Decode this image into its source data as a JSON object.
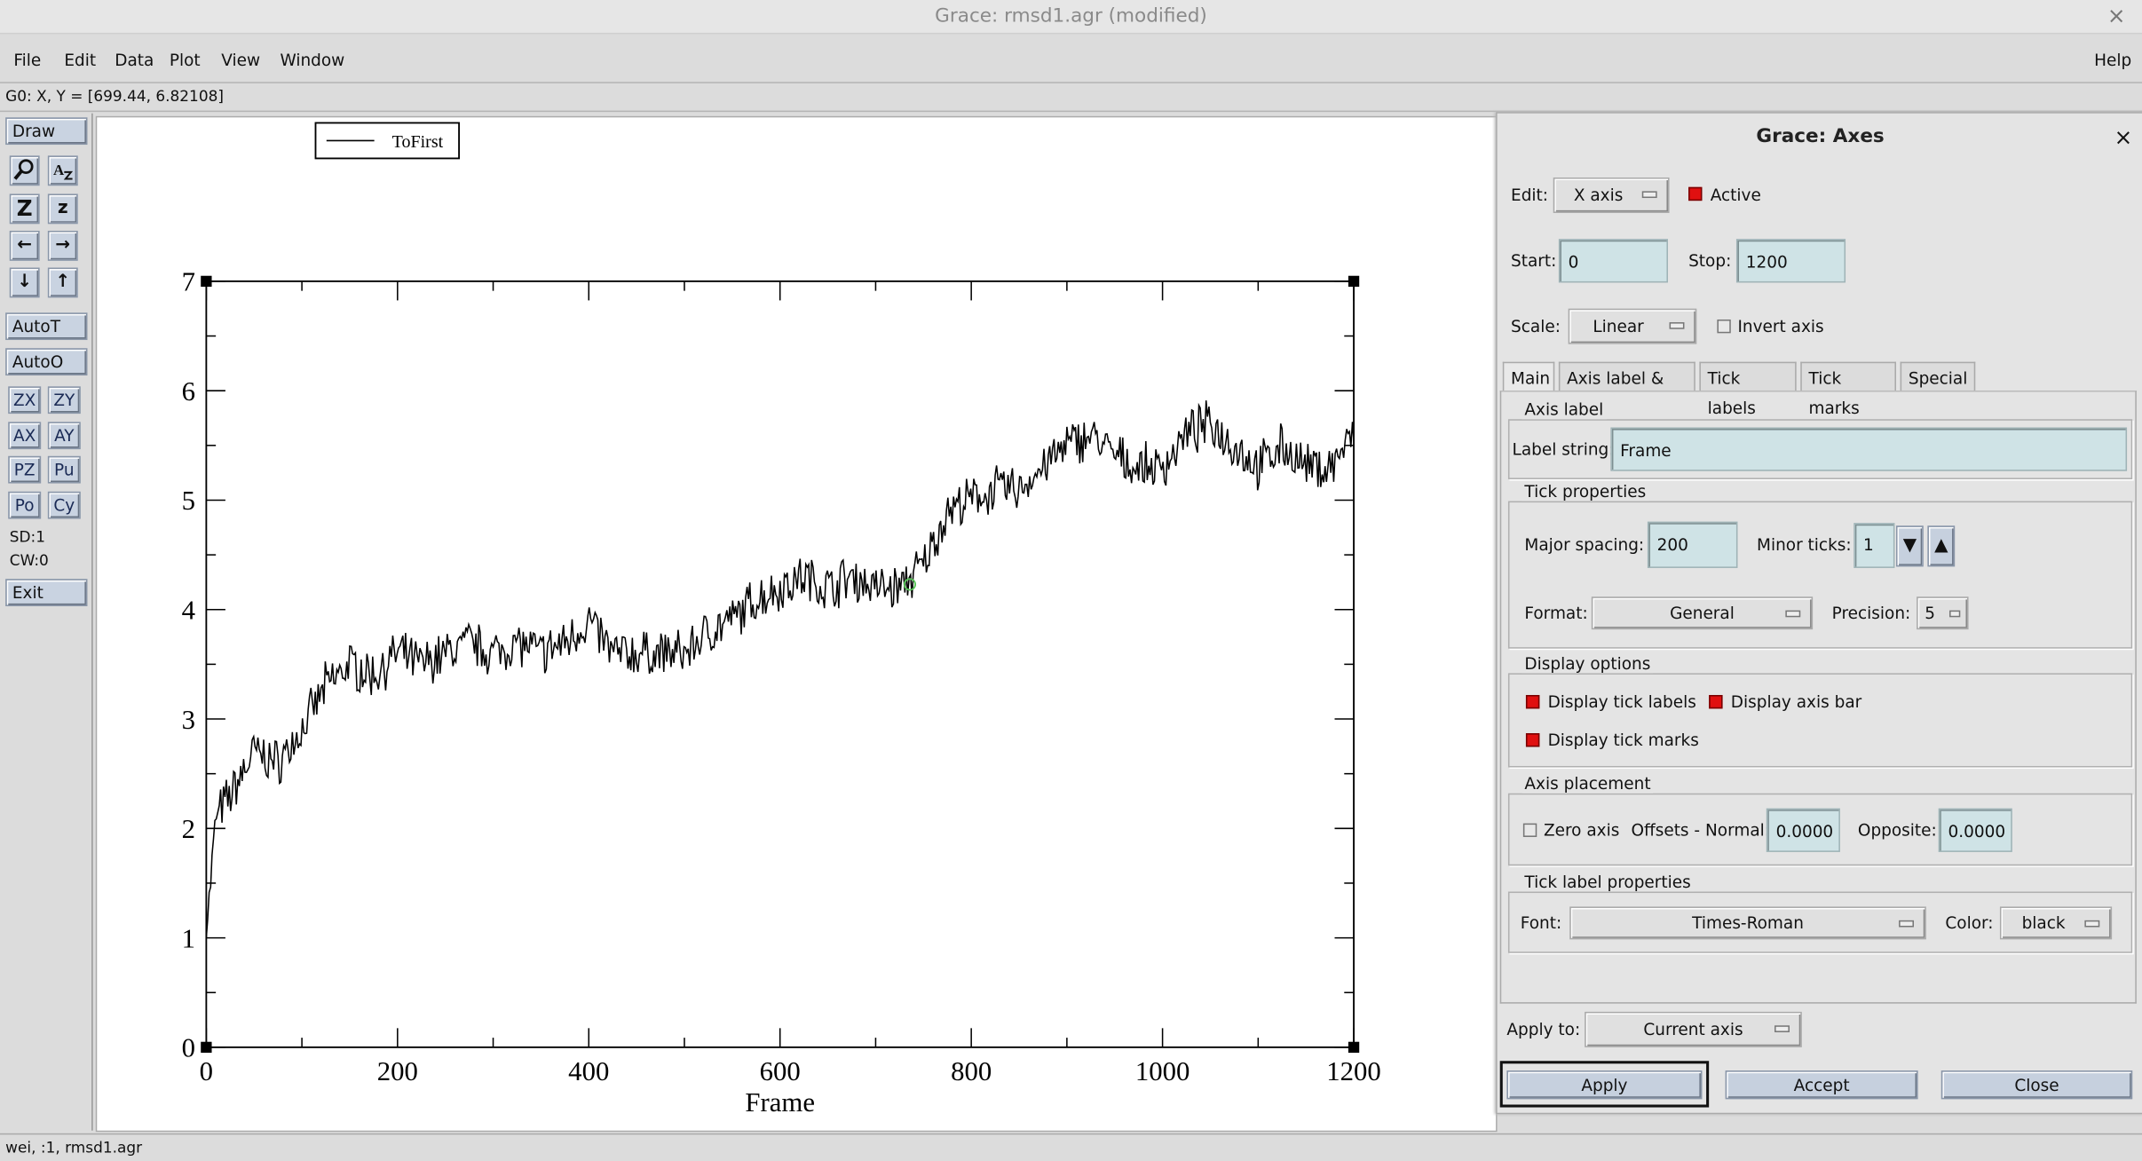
{
  "window": {
    "title": "Grace: rmsd1.agr (modified)",
    "close_glyph": "×"
  },
  "menubar": {
    "items": [
      "File",
      "Edit",
      "Data",
      "Plot",
      "View",
      "Window"
    ],
    "help": "Help"
  },
  "coord_readout": "G0: X, Y = [699.44, 6.82108]",
  "toolbar": {
    "draw": "Draw",
    "autot": "AutoT",
    "autoo": "AutoO",
    "zoom_buttons": [
      "ZX",
      "ZY",
      "AX",
      "AY",
      "PZ",
      "Pu",
      "Po",
      "Cy"
    ],
    "sd": "SD:1",
    "cw": "CW:0",
    "exit": "Exit"
  },
  "statusbar": "wei, :1, rmsd1.agr",
  "chart_data": {
    "type": "line",
    "xlabel": "Frame",
    "ylabel": "",
    "xlim": [
      0,
      1200
    ],
    "ylim": [
      0,
      7
    ],
    "x_ticks": [
      0,
      200,
      400,
      600,
      800,
      1000,
      1200
    ],
    "y_ticks": [
      0,
      1,
      2,
      3,
      4,
      5,
      6,
      7
    ],
    "legend": {
      "entries": [
        "ToFirst"
      ],
      "position": "top-left"
    },
    "grid": false,
    "series": [
      {
        "name": "ToFirst",
        "x": [
          0,
          10,
          25,
          50,
          75,
          100,
          125,
          150,
          175,
          200,
          225,
          250,
          275,
          300,
          325,
          350,
          375,
          400,
          425,
          450,
          475,
          500,
          525,
          550,
          575,
          600,
          625,
          650,
          675,
          700,
          725,
          750,
          775,
          800,
          825,
          850,
          875,
          900,
          925,
          950,
          975,
          1000,
          1025,
          1050,
          1075,
          1100,
          1125,
          1150,
          1175,
          1200
        ],
        "y": [
          1.0,
          2.1,
          2.3,
          2.7,
          2.6,
          2.9,
          3.3,
          3.5,
          3.4,
          3.6,
          3.5,
          3.6,
          3.7,
          3.6,
          3.7,
          3.6,
          3.7,
          3.9,
          3.6,
          3.6,
          3.6,
          3.6,
          3.8,
          3.9,
          4.1,
          4.2,
          4.3,
          4.2,
          4.3,
          4.2,
          4.2,
          4.4,
          4.9,
          5.0,
          5.1,
          5.1,
          5.3,
          5.5,
          5.6,
          5.4,
          5.3,
          5.3,
          5.6,
          5.7,
          5.5,
          5.3,
          5.5,
          5.3,
          5.3,
          5.6
        ]
      }
    ]
  },
  "axes_dialog": {
    "title": "Grace: Axes",
    "edit_label": "Edit:",
    "edit_value": "X axis",
    "active_label": "Active",
    "start_label": "Start:",
    "start_value": "0",
    "stop_label": "Stop:",
    "stop_value": "1200",
    "scale_label": "Scale:",
    "scale_value": "Linear",
    "invert_label": "Invert axis",
    "tabs": [
      "Main",
      "Axis label & bar",
      "Tick labels",
      "Tick marks",
      "Special"
    ],
    "axis_label_group": "Axis label",
    "label_string_label": "Label string:",
    "label_string_value": "Frame",
    "tick_props_group": "Tick properties",
    "major_spacing_label": "Major spacing:",
    "major_spacing_value": "200",
    "minor_ticks_label": "Minor ticks:",
    "minor_ticks_value": "1",
    "format_label": "Format:",
    "format_value": "General",
    "precision_label": "Precision:",
    "precision_value": "5",
    "display_group": "Display options",
    "display_tick_labels": "Display tick labels",
    "display_axis_bar": "Display axis bar",
    "display_tick_marks": "Display tick marks",
    "placement_group": "Axis placement",
    "zero_axis": "Zero axis",
    "offsets_normal_label": "Offsets - Normal:",
    "offsets_normal_value": "0.0000",
    "opposite_label": "Opposite:",
    "opposite_value": "0.0000",
    "tick_label_props_group": "Tick label properties",
    "font_label": "Font:",
    "font_value": "Times-Roman",
    "color_label": "Color:",
    "color_value": "black",
    "apply_to_label": "Apply to:",
    "apply_to_value": "Current axis",
    "apply_button": "Apply",
    "accept_button": "Accept",
    "close_button": "Close"
  }
}
